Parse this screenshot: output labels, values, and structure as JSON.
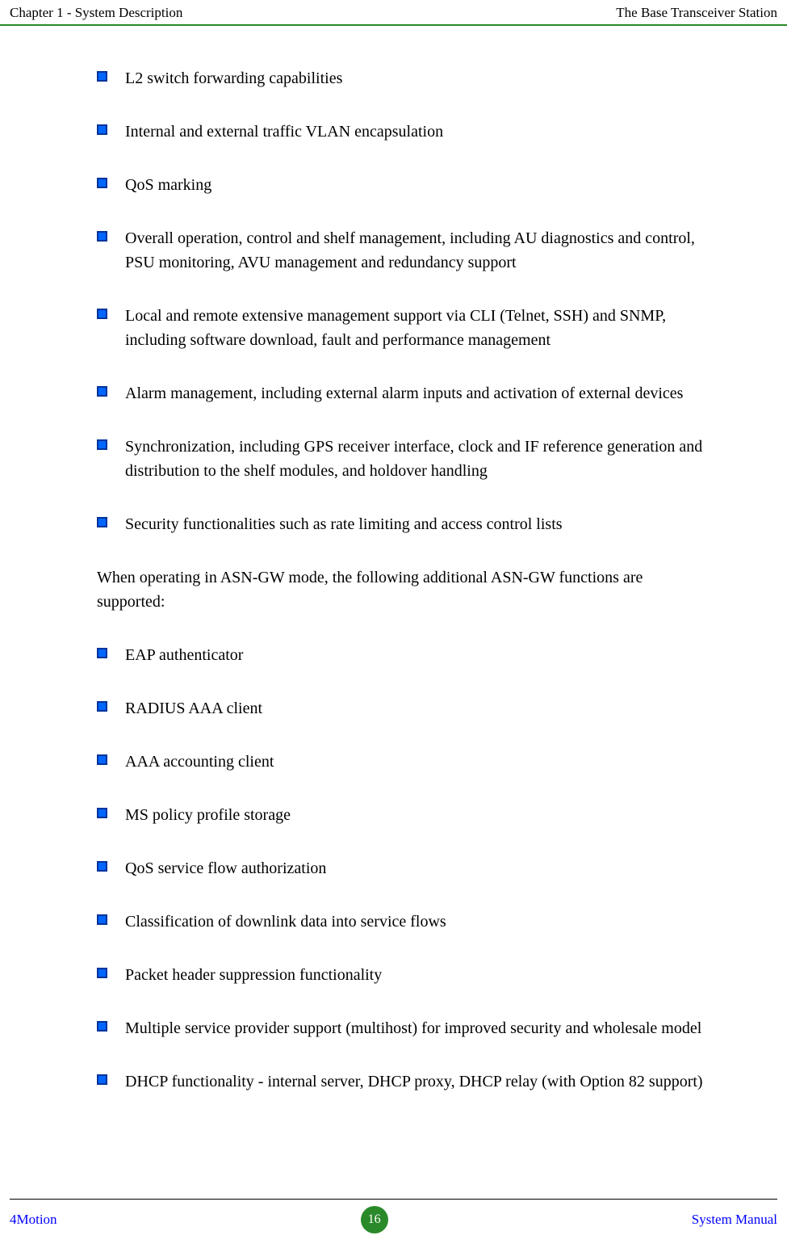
{
  "header": {
    "left": "Chapter 1 - System Description",
    "right": "The Base Transceiver Station"
  },
  "colors": {
    "bullet_fill": "#0066ff",
    "bullet_border": "#003399",
    "header_rule": "#2a8a2a",
    "page_circle": "#2a8a2a",
    "footer_link": "#0000ff"
  },
  "list1": [
    "L2 switch forwarding capabilities",
    "Internal and external traffic VLAN encapsulation",
    "QoS marking",
    "Overall operation, control and shelf management, including AU diagnostics and control, PSU monitoring, AVU management and redundancy support",
    "Local and remote extensive management support via CLI (Telnet, SSH) and SNMP, including software download, fault and performance management",
    "Alarm management, including external alarm inputs and activation of external devices",
    "Synchronization, including GPS receiver interface, clock and IF reference generation and distribution to the shelf modules, and holdover handling",
    "Security functionalities such as rate limiting and access control lists"
  ],
  "paragraph": "When operating in ASN-GW mode, the following additional ASN-GW functions are supported:",
  "list2": [
    "EAP authenticator",
    "RADIUS AAA client",
    "AAA accounting client",
    "MS policy profile storage",
    "QoS service flow authorization",
    "Classification of downlink data into service flows",
    "Packet header suppression functionality",
    "Multiple service provider support (multihost) for improved security and wholesale model",
    "DHCP functionality - internal server, DHCP proxy, DHCP relay (with Option 82 support)"
  ],
  "footer": {
    "left": "4Motion",
    "page": "16",
    "right": "System Manual"
  }
}
